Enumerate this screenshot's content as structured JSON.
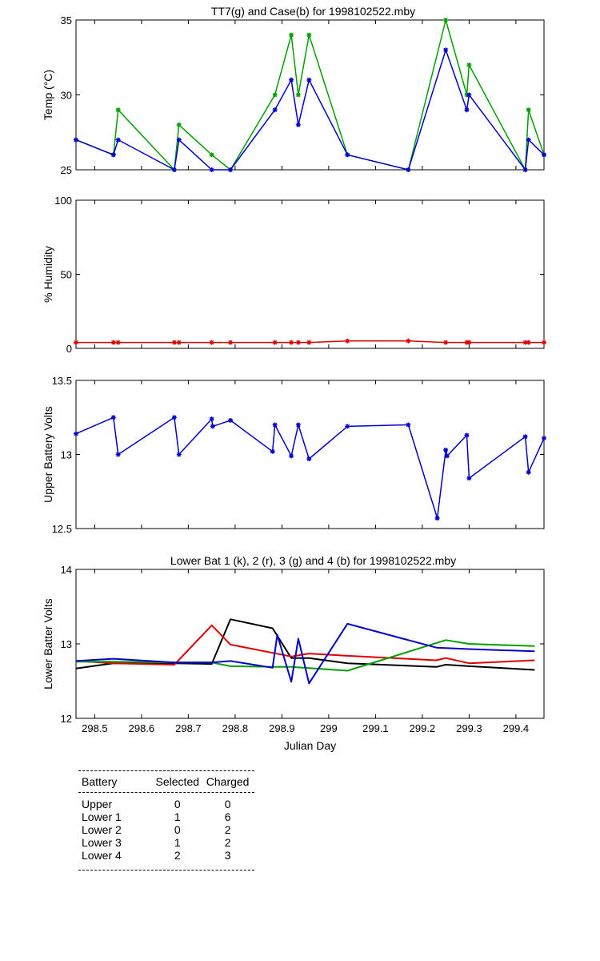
{
  "chart_data": [
    {
      "type": "line",
      "title": "TT7(g) and Case(b) for 1998102522.mby",
      "xlabel": "",
      "ylabel": "Temp  (°C)",
      "xlim": [
        298.46,
        299.46
      ],
      "ylim": [
        25,
        35
      ],
      "yticks": [
        25,
        30,
        35
      ],
      "grid": false,
      "series": [
        {
          "color": "#00a000",
          "markers": true,
          "x": [
            298.46,
            298.54,
            298.55,
            298.67,
            298.68,
            298.75,
            298.79,
            298.885,
            298.92,
            298.935,
            298.958,
            299.04,
            299.17,
            299.25,
            299.295,
            299.3,
            299.42,
            299.427,
            299.46
          ],
          "y": [
            27,
            26,
            29,
            25,
            28,
            26,
            25,
            30,
            34,
            30,
            34,
            26,
            25,
            35,
            30,
            32,
            25,
            29,
            26
          ]
        },
        {
          "color": "#0000d0",
          "markers": true,
          "x": [
            298.46,
            298.54,
            298.55,
            298.67,
            298.68,
            298.75,
            298.79,
            298.885,
            298.92,
            298.935,
            298.958,
            299.04,
            299.17,
            299.25,
            299.295,
            299.3,
            299.42,
            299.427,
            299.46
          ],
          "y": [
            27,
            26,
            27,
            25,
            27,
            25,
            25,
            29,
            31,
            28,
            31,
            26,
            25,
            33,
            29,
            30,
            25,
            27,
            26
          ]
        }
      ]
    },
    {
      "type": "line",
      "title": "",
      "xlabel": "",
      "ylabel": "% Humidity",
      "xlim": [
        298.46,
        299.46
      ],
      "ylim": [
        0,
        100
      ],
      "yticks": [
        0,
        50,
        100
      ],
      "grid": false,
      "series": [
        {
          "color": "#e00000",
          "markers": true,
          "x": [
            298.46,
            298.54,
            298.55,
            298.67,
            298.68,
            298.75,
            298.79,
            298.885,
            298.92,
            298.935,
            298.958,
            299.04,
            299.17,
            299.25,
            299.295,
            299.3,
            299.42,
            299.427,
            299.46
          ],
          "y": [
            4,
            4,
            4,
            4,
            4,
            4,
            4,
            4,
            4,
            4,
            4,
            5,
            5,
            4,
            4,
            4,
            4,
            4,
            4
          ]
        }
      ]
    },
    {
      "type": "line",
      "title": "",
      "xlabel": "",
      "ylabel": "Upper Battery Volts",
      "xlim": [
        298.46,
        299.46
      ],
      "ylim": [
        12.5,
        13.5
      ],
      "yticks": [
        12.5,
        13,
        13.5
      ],
      "grid": false,
      "series": [
        {
          "color": "#0000d0",
          "markers": true,
          "x": [
            298.46,
            298.54,
            298.55,
            298.67,
            298.68,
            298.75,
            298.752,
            298.79,
            298.88,
            298.885,
            298.92,
            298.935,
            298.958,
            299.04,
            299.17,
            299.232,
            299.25,
            299.253,
            299.295,
            299.3,
            299.42,
            299.427,
            299.46
          ],
          "y": [
            13.14,
            13.25,
            13.0,
            13.25,
            13.0,
            13.24,
            13.19,
            13.23,
            13.02,
            13.2,
            12.99,
            13.2,
            12.97,
            13.19,
            13.2,
            12.57,
            13.03,
            12.99,
            13.13,
            12.84,
            13.12,
            12.88,
            13.11
          ]
        }
      ]
    },
    {
      "type": "line",
      "title": "Lower Bat 1 (k), 2 (r), 3 (g) and 4 (b) for 1998102522.mby",
      "xlabel": "Julian Day",
      "ylabel": "Lower Batter Volts",
      "xlim": [
        298.46,
        299.46
      ],
      "ylim": [
        12,
        14
      ],
      "yticks": [
        12,
        13,
        14
      ],
      "xticks": [
        298.5,
        298.6,
        298.7,
        298.8,
        298.9,
        299,
        299.1,
        299.2,
        299.3,
        299.4
      ],
      "xticklabels": [
        "298.5",
        "298.6",
        "298.7",
        "298.8",
        "298.9",
        "299",
        "299.1",
        "299.2",
        "299.3",
        "299.4"
      ],
      "grid": false,
      "series": [
        {
          "color": "#000000",
          "markers": false,
          "x": [
            298.46,
            298.54,
            298.67,
            298.75,
            298.79,
            298.88,
            298.92,
            298.958,
            299.04,
            299.23,
            299.25,
            299.3,
            299.44
          ],
          "y": [
            12.67,
            12.74,
            12.74,
            12.73,
            13.33,
            13.21,
            12.81,
            12.81,
            12.74,
            12.69,
            12.72,
            12.7,
            12.65
          ]
        },
        {
          "color": "#e00000",
          "markers": false,
          "x": [
            298.46,
            298.54,
            298.67,
            298.75,
            298.79,
            298.92,
            298.958,
            299.04,
            299.23,
            299.25,
            299.3,
            299.44
          ],
          "y": [
            12.77,
            12.74,
            12.72,
            13.25,
            12.99,
            12.83,
            12.87,
            12.84,
            12.78,
            12.81,
            12.74,
            12.78
          ]
        },
        {
          "color": "#00a000",
          "markers": false,
          "x": [
            298.46,
            298.54,
            298.67,
            298.75,
            298.79,
            298.885,
            298.92,
            299.04,
            299.25,
            299.3,
            299.44
          ],
          "y": [
            12.76,
            12.76,
            12.75,
            12.75,
            12.7,
            12.69,
            12.69,
            12.64,
            13.05,
            13.0,
            12.97
          ]
        },
        {
          "color": "#0000d0",
          "markers": false,
          "x": [
            298.46,
            298.54,
            298.67,
            298.75,
            298.79,
            298.88,
            298.89,
            298.92,
            298.935,
            298.958,
            299.04,
            299.23,
            299.3,
            299.44
          ],
          "y": [
            12.77,
            12.8,
            12.75,
            12.75,
            12.77,
            12.68,
            13.12,
            12.49,
            13.07,
            12.47,
            13.27,
            12.95,
            12.93,
            12.9
          ]
        }
      ]
    }
  ],
  "table": {
    "headers": [
      "Battery",
      "Selected",
      "Charged"
    ],
    "rows": [
      [
        "Upper",
        "0",
        "0"
      ],
      [
        "Lower 1",
        "1",
        "6"
      ],
      [
        "Lower 2",
        "0",
        "2"
      ],
      [
        "Lower 3",
        "1",
        "2"
      ],
      [
        "Lower 4",
        "2",
        "3"
      ]
    ]
  }
}
